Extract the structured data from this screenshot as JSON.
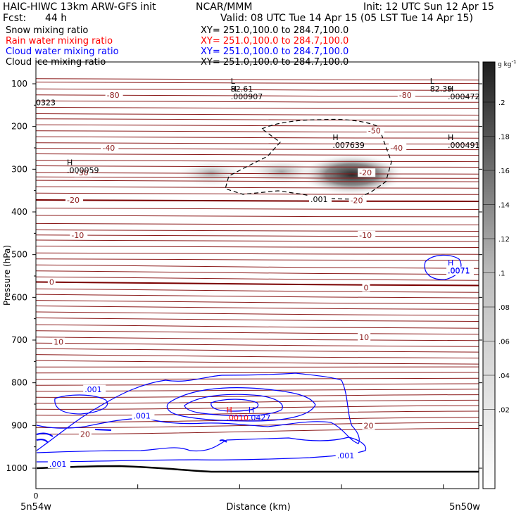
{
  "header": {
    "model": "HAIC-HIWC 13km ARW-GFS init",
    "org": "NCAR/MMM",
    "init": "Init: 12 UTC Sun 12 Apr 15",
    "fcst_label": "Fcst:",
    "fcst_value": "44 h",
    "valid": "Valid: 08 UTC Tue 14 Apr 15 (05 LST Tue 14 Apr 15)"
  },
  "fields": [
    {
      "name": "Snow mixing ratio",
      "xy": "XY= 251.0,100.0 to 284.7,100.0",
      "color": "#000000"
    },
    {
      "name": "Rain water mixing ratio",
      "xy": "XY= 251.0,100.0 to 284.7,100.0",
      "color": "#ff0000"
    },
    {
      "name": "Cloud water mixing ratio",
      "xy": "XY= 251.0,100.0 to 284.7,100.0",
      "color": "#0000ff"
    },
    {
      "name": "Cloud ice mixing ratio",
      "xy": "XY= 251.0,100.0 to 284.7,100.0",
      "color": "#000000"
    }
  ],
  "chart_data": {
    "type": "heatmap",
    "ylabel": "Pressure (hPa)",
    "xlabel": "Distance (km)",
    "x_start_label": "5n54w",
    "x_end_label": "5n50w",
    "x_tick_label": "0",
    "y_ticks": [
      100,
      200,
      300,
      400,
      500,
      600,
      700,
      800,
      900,
      1000
    ],
    "ylim": [
      1050,
      50
    ],
    "colorbar": {
      "unit": "g kg",
      "unit_exp": "-1",
      "ticks": [
        ".2",
        ".18",
        ".16",
        ".14",
        ".12",
        ".1",
        ".08",
        ".06",
        ".04",
        ".02"
      ],
      "range": [
        0,
        0.22
      ]
    },
    "temperature_labels": [
      {
        "text": "-80",
        "x": 0.16,
        "p": 126
      },
      {
        "text": "-80",
        "x": 0.82,
        "p": 126
      },
      {
        "text": "-50",
        "x": 0.75,
        "p": 210
      },
      {
        "text": "-40",
        "x": 0.15,
        "p": 250
      },
      {
        "text": "-40",
        "x": 0.8,
        "p": 250
      },
      {
        "text": "-30",
        "x": 0.09,
        "p": 308
      },
      {
        "text": "-20",
        "x": 0.73,
        "p": 308
      },
      {
        "text": "-20",
        "x": 0.07,
        "p": 372
      },
      {
        "text": "-20",
        "x": 0.71,
        "p": 373
      },
      {
        "text": "-10",
        "x": 0.08,
        "p": 454
      },
      {
        "text": "-10",
        "x": 0.73,
        "p": 454
      },
      {
        "text": "0",
        "x": 0.03,
        "p": 564
      },
      {
        "text": "0",
        "x": 0.74,
        "p": 577
      },
      {
        "text": "10",
        "x": 0.04,
        "p": 704
      },
      {
        "text": "10",
        "x": 0.73,
        "p": 693
      },
      {
        "text": "20",
        "x": 0.1,
        "p": 920
      },
      {
        "text": "20",
        "x": 0.74,
        "p": 900
      }
    ],
    "cloud_water_labels": [
      {
        "text": ".001",
        "x": 0.11,
        "p": 815
      },
      {
        "text": ".001",
        "x": 0.22,
        "p": 877
      },
      {
        "text": ".001",
        "x": 0.03,
        "p": 990
      },
      {
        "text": ".001",
        "x": 0.68,
        "p": 970
      },
      {
        "text": ".0071",
        "x": 0.93,
        "p": 538
      }
    ],
    "ice_labels": [
      {
        "text": ".001",
        "x": 0.62,
        "p": 370
      }
    ],
    "extrema": [
      {
        "type": "L",
        "value": "82.61",
        "x": 0.44,
        "p": 100,
        "color": "#000000"
      },
      {
        "type": "H",
        "value": ".000907",
        "x": 0.44,
        "p": 118,
        "color": "#000000"
      },
      {
        "type": "L",
        "value": "82.39",
        "x": 0.89,
        "p": 100,
        "color": "#000000"
      },
      {
        "type": "H",
        "value": ".000472",
        "x": 0.93,
        "p": 118,
        "color": "#000000"
      },
      {
        "type": "",
        "value": "0323",
        "x": 0.0,
        "p": 132,
        "color": "#000000"
      },
      {
        "type": "H",
        "value": ".007639",
        "x": 0.67,
        "p": 232,
        "color": "#000000"
      },
      {
        "type": "H",
        "value": ".000491",
        "x": 0.93,
        "p": 232,
        "color": "#000000"
      },
      {
        "type": "H",
        "value": ".000059",
        "x": 0.07,
        "p": 290,
        "color": "#000000"
      },
      {
        "type": "H",
        "value": ".0071",
        "x": 0.93,
        "p": 525,
        "color": "#0000ff"
      },
      {
        "type": "H",
        "value": ".0010",
        "x": 0.43,
        "p": 870,
        "color": "#ff0000"
      },
      {
        "type": "H",
        "value": ".0427",
        "x": 0.48,
        "p": 870,
        "color": "#0000ff"
      }
    ]
  }
}
